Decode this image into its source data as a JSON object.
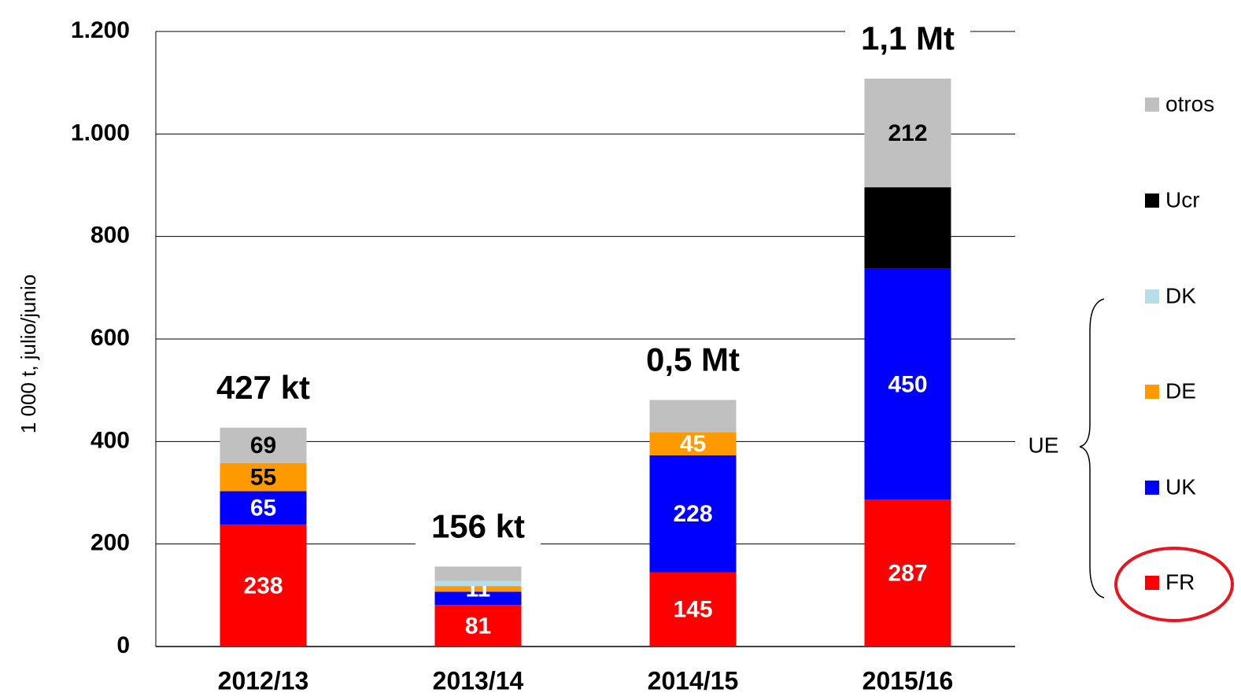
{
  "chart_data": {
    "type": "stacked_bar",
    "y_label": "1 000 t, julio/junio",
    "categories": [
      "2012/13",
      "2013/14",
      "2014/15",
      "2015/16"
    ],
    "series": [
      {
        "name": "FR",
        "color": "#ff0000",
        "values": [
          238,
          81,
          145,
          287
        ],
        "value_labels": [
          "238",
          "81",
          "145",
          "287"
        ]
      },
      {
        "name": "UK",
        "color": "#0000ff",
        "values": [
          65,
          26,
          228,
          450
        ],
        "value_labels": [
          "65",
          null,
          "228",
          "450"
        ]
      },
      {
        "name": "DE",
        "color": "#ff9900",
        "values": [
          55,
          11,
          45,
          null
        ],
        "value_labels": [
          "55",
          "11",
          "45",
          null
        ]
      },
      {
        "name": "DK",
        "color": "#b7dee8",
        "values": [
          null,
          10,
          null,
          null
        ],
        "value_labels": [
          null,
          null,
          null,
          null
        ]
      },
      {
        "name": "Ucr",
        "color": "#000000",
        "values": [
          null,
          null,
          null,
          159
        ],
        "value_labels": [
          null,
          null,
          null,
          null
        ]
      },
      {
        "name": "otros",
        "color": "#c0c0c0",
        "values": [
          69,
          28,
          63,
          212
        ],
        "value_labels": [
          "69",
          null,
          null,
          "212"
        ]
      }
    ],
    "total_labels": [
      "427 kt",
      "156 kt",
      "0,5 Mt",
      "1,1 Mt"
    ],
    "group_label": "UE",
    "ylim": [
      0,
      1200
    ],
    "yticks": [
      0,
      200,
      400,
      600,
      800,
      {
        "value": 1000,
        "label": "1.000"
      },
      {
        "value": 1200,
        "label": "1.200"
      }
    ],
    "grid": true
  }
}
